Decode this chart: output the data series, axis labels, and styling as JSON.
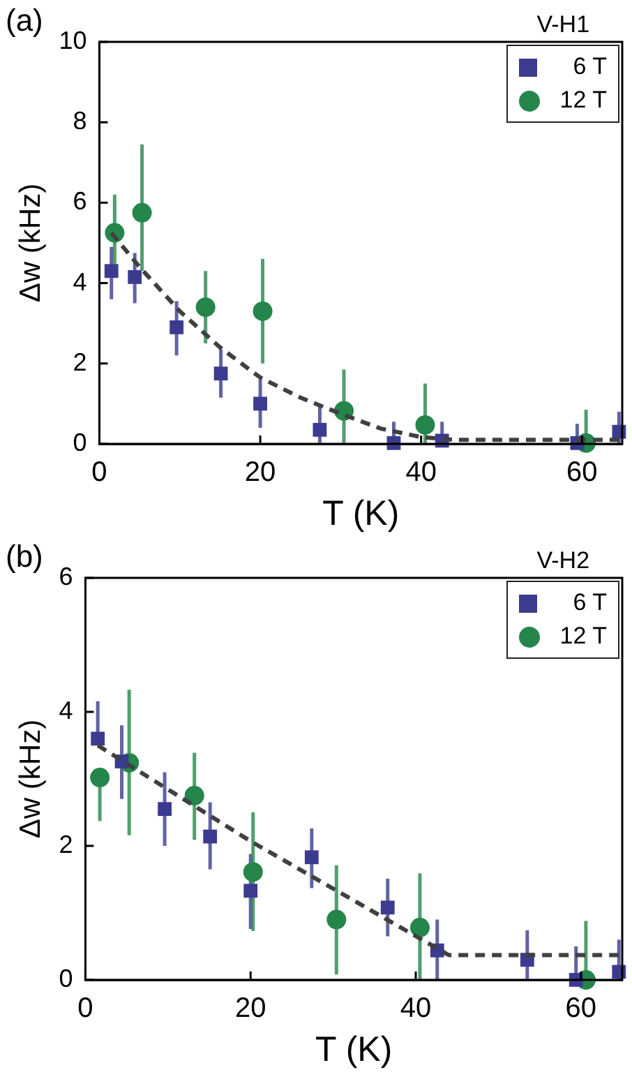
{
  "chart_data": [
    {
      "type": "scatter",
      "annotations": [
        "(a)"
      ],
      "xlabel": "T (K)",
      "ylabel": "Δw (kHz)",
      "legend_title": "V-H1",
      "legend": "top right",
      "grid": false,
      "xlim": [
        0,
        65
      ],
      "xticks": [
        0,
        20,
        40,
        60
      ],
      "ylim": [
        0,
        10
      ],
      "yticks": [
        0,
        2,
        4,
        6,
        8,
        10
      ],
      "series": [
        {
          "name": "6 T",
          "color": "#3b3b8f",
          "marker": "square",
          "x": [
            1.5,
            4.4,
            9.6,
            15.1,
            20,
            27.4,
            36.6,
            42.6,
            59.4,
            64.6
          ],
          "values": [
            4.3,
            4.15,
            2.9,
            1.75,
            1.0,
            0.35,
            0.02,
            0.08,
            0.02,
            0.3
          ],
          "errors": [
            [
              3.6,
              4.9
            ],
            [
              3.5,
              4.75
            ],
            [
              2.2,
              3.55
            ],
            [
              1.15,
              2.35
            ],
            [
              0.4,
              1.6
            ],
            [
              0,
              0.95
            ],
            [
              0,
              0.55
            ],
            [
              0,
              0.55
            ],
            [
              0,
              0.5
            ],
            [
              0,
              0.8
            ]
          ]
        },
        {
          "name": "12 T",
          "color": "#24864a",
          "marker": "circle",
          "x": [
            1.9,
            5.3,
            13.2,
            20.3,
            30.4,
            40.5,
            60.5
          ],
          "values": [
            5.25,
            5.75,
            3.4,
            3.3,
            0.82,
            0.47,
            0.02
          ],
          "errors": [
            [
              4.35,
              6.2
            ],
            [
              4.3,
              7.45
            ],
            [
              2.5,
              4.3
            ],
            [
              2.0,
              4.6
            ],
            [
              0,
              1.85
            ],
            [
              0,
              1.5
            ],
            [
              0,
              0.85
            ]
          ]
        },
        {
          "type": "line",
          "color": "#404040",
          "marker": "none",
          "line_style": "dashed",
          "x": [
            1.5,
            5,
            10,
            15,
            20,
            25,
            30,
            35,
            40,
            44,
            65
          ],
          "values": [
            5.25,
            4.4,
            3.3,
            2.4,
            1.65,
            1.15,
            0.75,
            0.38,
            0.17,
            0.1,
            0.1
          ]
        }
      ]
    },
    {
      "type": "scatter",
      "annotations": [
        "(b)"
      ],
      "xlabel": "T (K)",
      "ylabel": "Δw (kHz)",
      "legend_title": "V-H2",
      "legend": "top right",
      "grid": false,
      "xlim": [
        0,
        65
      ],
      "xticks": [
        0,
        20,
        40,
        60
      ],
      "ylim": [
        0,
        6
      ],
      "yticks": [
        0,
        2,
        4,
        6
      ],
      "series": [
        {
          "name": "6 T",
          "color": "#3b3b8f",
          "marker": "square",
          "x": [
            1.5,
            4.4,
            9.6,
            15.1,
            20,
            27.4,
            36.6,
            42.6,
            53.5,
            59.4,
            64.6
          ],
          "values": [
            3.6,
            3.26,
            2.55,
            2.14,
            1.33,
            1.83,
            1.08,
            0.44,
            0.3,
            0,
            0.12
          ],
          "errors": [
            [
              3.6,
              4.16
            ],
            [
              2.7,
              3.8
            ],
            [
              2.0,
              3.1
            ],
            [
              1.65,
              2.65
            ],
            [
              0.76,
              1.88
            ],
            [
              1.37,
              2.26
            ],
            [
              0.65,
              1.51
            ],
            [
              0,
              0.9
            ],
            [
              0,
              0.74
            ],
            [
              0,
              0.5
            ],
            [
              0,
              0.6
            ]
          ]
        },
        {
          "name": "12 T",
          "color": "#24864a",
          "marker": "circle",
          "x": [
            1.75,
            5.3,
            13.2,
            20.3,
            30.4,
            40.5,
            60.6
          ],
          "values": [
            3.02,
            3.24,
            2.75,
            1.61,
            0.9,
            0.78,
            0
          ],
          "errors": [
            [
              2.37,
              3.02
            ],
            [
              2.16,
              4.33
            ],
            [
              2.09,
              3.39
            ],
            [
              0.73,
              2.5
            ],
            [
              0.08,
              1.71
            ],
            [
              0,
              1.59
            ],
            [
              0,
              0.88
            ]
          ]
        },
        {
          "type": "line",
          "color": "#404040",
          "marker": "none",
          "line_style": "dashed",
          "x": [
            1.5,
            20,
            44,
            65
          ],
          "values": [
            3.5,
            2.07,
            0.37,
            0.37
          ]
        }
      ]
    }
  ]
}
